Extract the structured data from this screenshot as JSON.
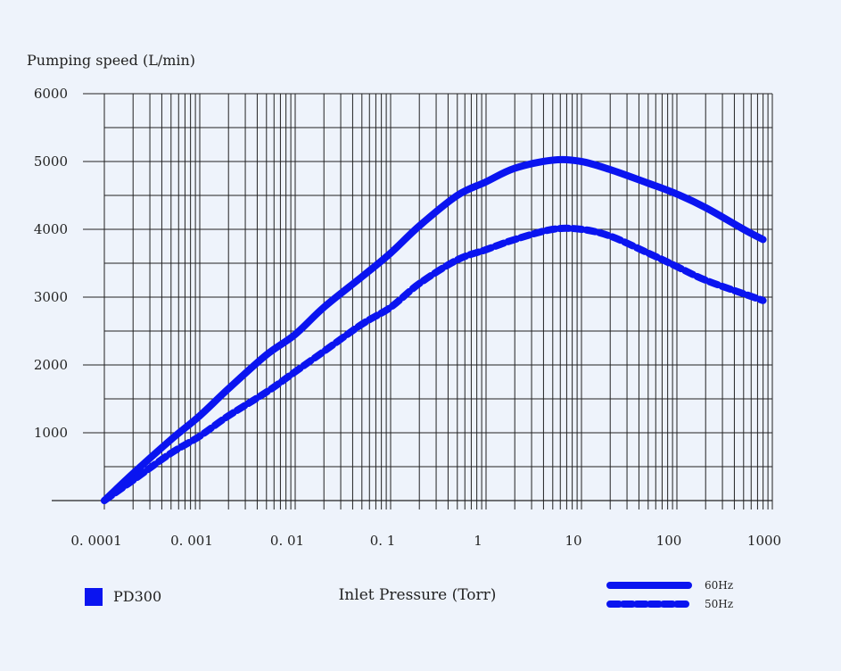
{
  "chart_data": {
    "type": "line",
    "ylabel": "Pumping speed (L/min)",
    "xlabel": "Inlet Pressure (Torr)",
    "x_scale": "log",
    "xlim": [
      0.0001,
      1000
    ],
    "ylim": [
      0,
      6000
    ],
    "x_ticks": [
      {
        "value": 0.0001,
        "label": "0. 0001"
      },
      {
        "value": 0.001,
        "label": "0. 001"
      },
      {
        "value": 0.01,
        "label": "0. 01"
      },
      {
        "value": 0.1,
        "label": "0. 1"
      },
      {
        "value": 1,
        "label": "1"
      },
      {
        "value": 10,
        "label": "10"
      },
      {
        "value": 100,
        "label": "100"
      },
      {
        "value": 1000,
        "label": "1000"
      }
    ],
    "y_ticks": [
      {
        "value": 1000,
        "label": "1000"
      },
      {
        "value": 2000,
        "label": "2000"
      },
      {
        "value": 3000,
        "label": "3000"
      },
      {
        "value": 4000,
        "label": "4000"
      },
      {
        "value": 5000,
        "label": "5000"
      },
      {
        "value": 6000,
        "label": "6000"
      }
    ],
    "grid": true,
    "legend_position": "bottom-right",
    "series": [
      {
        "name": "60Hz",
        "style": "solid",
        "color": "#0a14f0",
        "x": [
          0.0001,
          0.0002,
          0.0005,
          0.001,
          0.002,
          0.005,
          0.01,
          0.02,
          0.05,
          0.1,
          0.2,
          0.5,
          1,
          2,
          5,
          10,
          20,
          50,
          100,
          200,
          500,
          800
        ],
        "y": [
          0,
          400,
          900,
          1250,
          1650,
          2150,
          2450,
          2850,
          3300,
          3650,
          4050,
          4500,
          4700,
          4900,
          5020,
          5000,
          4880,
          4680,
          4520,
          4320,
          4000,
          3850
        ]
      },
      {
        "name": "50Hz",
        "style": "dashed",
        "color": "#0a14f0",
        "x": [
          0.0001,
          0.0002,
          0.0005,
          0.001,
          0.002,
          0.005,
          0.01,
          0.02,
          0.05,
          0.1,
          0.2,
          0.5,
          1,
          2,
          5,
          10,
          20,
          50,
          100,
          200,
          500,
          800
        ],
        "y": [
          0,
          300,
          700,
          950,
          1250,
          1600,
          1900,
          2200,
          2600,
          2850,
          3200,
          3550,
          3700,
          3850,
          4000,
          4000,
          3900,
          3650,
          3450,
          3250,
          3050,
          2950
        ]
      }
    ]
  },
  "legend": {
    "product_swatch_color": "#0a14f0",
    "product_label": "PD300"
  }
}
